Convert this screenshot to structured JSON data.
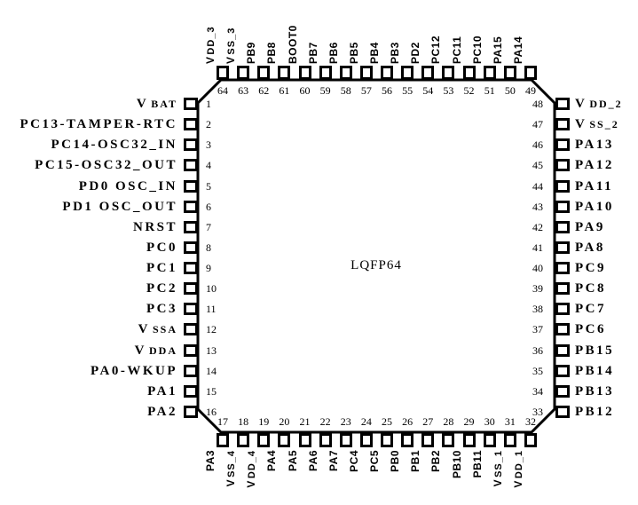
{
  "package": {
    "label": "LQFP64"
  },
  "colors": {
    "line": "#000000",
    "background": "#ffffff"
  },
  "pins": {
    "left": [
      {
        "num": 1,
        "label": "V BAT"
      },
      {
        "num": 2,
        "label": "PC13-TAMPER-RTC"
      },
      {
        "num": 3,
        "label": "PC14-OSC32_IN"
      },
      {
        "num": 4,
        "label": "PC15-OSC32_OUT"
      },
      {
        "num": 5,
        "label": "PD0 OSC_IN"
      },
      {
        "num": 6,
        "label": "PD1 OSC_OUT"
      },
      {
        "num": 7,
        "label": "NRST"
      },
      {
        "num": 8,
        "label": "PC0"
      },
      {
        "num": 9,
        "label": "PC1"
      },
      {
        "num": 10,
        "label": "PC2"
      },
      {
        "num": 11,
        "label": "PC3"
      },
      {
        "num": 12,
        "label": "V SSA"
      },
      {
        "num": 13,
        "label": "V DDA"
      },
      {
        "num": 14,
        "label": "PA0-WKUP"
      },
      {
        "num": 15,
        "label": "PA1"
      },
      {
        "num": 16,
        "label": "PA2"
      }
    ],
    "right": [
      {
        "num": 48,
        "label": "V DD_2"
      },
      {
        "num": 47,
        "label": "V SS_2"
      },
      {
        "num": 46,
        "label": "PA13"
      },
      {
        "num": 45,
        "label": "PA12"
      },
      {
        "num": 44,
        "label": "PA11"
      },
      {
        "num": 43,
        "label": "PA10"
      },
      {
        "num": 42,
        "label": "PA9"
      },
      {
        "num": 41,
        "label": "PA8"
      },
      {
        "num": 40,
        "label": "PC9"
      },
      {
        "num": 39,
        "label": "PC8"
      },
      {
        "num": 38,
        "label": "PC7"
      },
      {
        "num": 37,
        "label": "PC6"
      },
      {
        "num": 36,
        "label": "PB15"
      },
      {
        "num": 35,
        "label": "PB14"
      },
      {
        "num": 34,
        "label": "PB13"
      },
      {
        "num": 33,
        "label": "PB12"
      }
    ],
    "top": [
      {
        "num": 64,
        "label": "V DD_3"
      },
      {
        "num": 63,
        "label": "V SS_3"
      },
      {
        "num": 62,
        "label": "PB9"
      },
      {
        "num": 61,
        "label": "PB8"
      },
      {
        "num": 60,
        "label": "BOOT0"
      },
      {
        "num": 59,
        "label": "PB7"
      },
      {
        "num": 58,
        "label": "PB6"
      },
      {
        "num": 57,
        "label": "PB5"
      },
      {
        "num": 56,
        "label": "PB4"
      },
      {
        "num": 55,
        "label": "PB3"
      },
      {
        "num": 54,
        "label": "PD2"
      },
      {
        "num": 53,
        "label": "PC12"
      },
      {
        "num": 52,
        "label": "PC11"
      },
      {
        "num": 51,
        "label": "PC10"
      },
      {
        "num": 50,
        "label": "PA15"
      },
      {
        "num": 49,
        "label": "PA14"
      }
    ],
    "bottom": [
      {
        "num": 17,
        "label": "PA3"
      },
      {
        "num": 18,
        "label": "V SS_4"
      },
      {
        "num": 19,
        "label": "V DD_4"
      },
      {
        "num": 20,
        "label": "PA4"
      },
      {
        "num": 21,
        "label": "PA5"
      },
      {
        "num": 22,
        "label": "PA6"
      },
      {
        "num": 23,
        "label": "PA7"
      },
      {
        "num": 24,
        "label": "PC4"
      },
      {
        "num": 25,
        "label": "PC5"
      },
      {
        "num": 26,
        "label": "PB0"
      },
      {
        "num": 27,
        "label": "PB1"
      },
      {
        "num": 28,
        "label": "PB2"
      },
      {
        "num": 29,
        "label": "PB10"
      },
      {
        "num": 30,
        "label": "PB11"
      },
      {
        "num": 31,
        "label": "V SS_1"
      },
      {
        "num": 32,
        "label": "V DD_1"
      }
    ]
  }
}
